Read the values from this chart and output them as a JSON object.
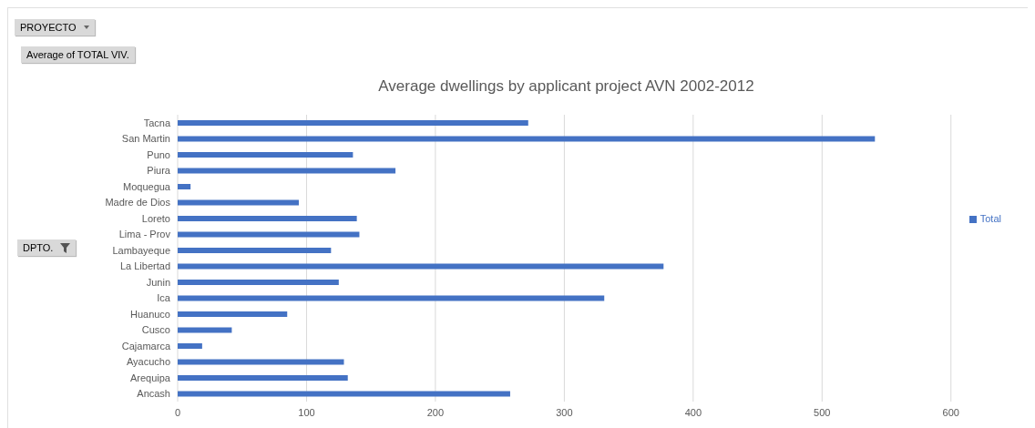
{
  "chart_data": {
    "type": "bar",
    "orientation": "horizontal",
    "title": "Average dwellings by applicant project AVN 2002-2012",
    "categories": [
      "Tacna",
      "San Martin",
      "Puno",
      "Piura",
      "Moquegua",
      "Madre de Dios",
      "Loreto",
      "Lima - Prov",
      "Lambayeque",
      "La Libertad",
      "Junin",
      "Ica",
      "Huanuco",
      "Cusco",
      "Cajamarca",
      "Ayacucho",
      "Arequipa",
      "Ancash"
    ],
    "series": [
      {
        "name": "Total",
        "color": "#4472c4",
        "values": [
          272,
          541,
          136,
          169,
          10,
          94,
          139,
          141,
          119,
          377,
          125,
          331,
          85,
          42,
          19,
          129,
          132,
          258
        ]
      }
    ],
    "xlim": [
      0,
      600
    ],
    "xticks": [
      0,
      100,
      200,
      300,
      400,
      500,
      600
    ],
    "grid": "x",
    "legend": "right",
    "annotations": [
      "PROYECTO",
      "Average of TOTAL VIV.",
      "DPTO."
    ]
  }
}
